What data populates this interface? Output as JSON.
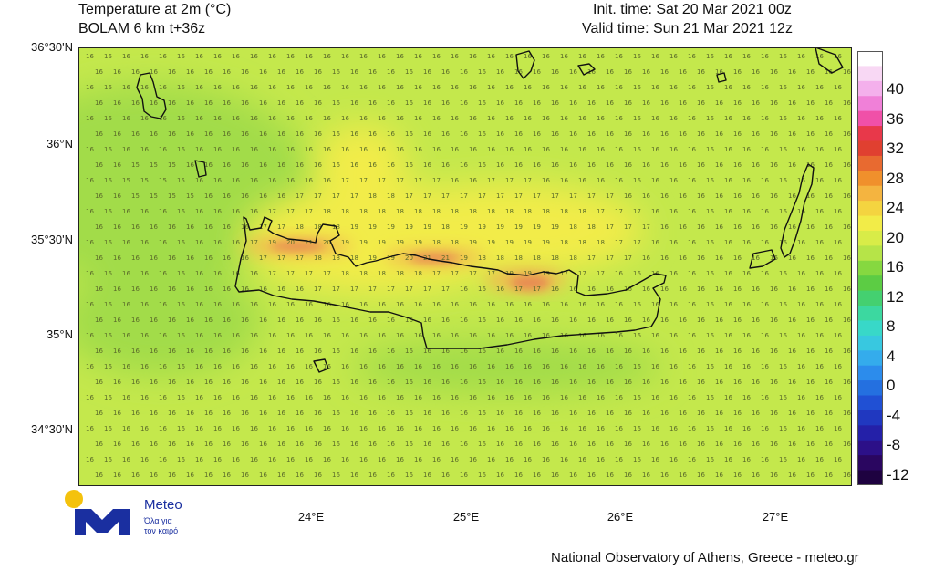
{
  "header": {
    "title_line1": "Temperature at 2m (°C)",
    "title_line2": "BOLAM 6 km t+36z",
    "init_time": "Init. time: Sat 20 Mar 2021 00z",
    "valid_time": "Valid time: Sun 21 Mar 2021 12z"
  },
  "axes": {
    "lat_labels": [
      "36°30'N",
      "36°N",
      "35°30'N",
      "35°N",
      "34°30'N"
    ],
    "lon_labels": [
      "24°E",
      "25°E",
      "26°E",
      "27°E"
    ]
  },
  "colorbar": {
    "labels": [
      "40",
      "36",
      "32",
      "28",
      "24",
      "20",
      "16",
      "12",
      "8",
      "4",
      "0",
      "-4",
      "-8",
      "-12"
    ],
    "colors": [
      "#ffffff",
      "#f8d8f4",
      "#f4b0ec",
      "#f080d8",
      "#f050a8",
      "#e8384a",
      "#e04030",
      "#e86a30",
      "#f0902c",
      "#f4b440",
      "#f4d440",
      "#f2ec48",
      "#d8ec48",
      "#b6e448",
      "#86d840",
      "#5ccc44",
      "#44d070",
      "#3cd8a0",
      "#38d8c8",
      "#38c8e0",
      "#34acec",
      "#2c8cec",
      "#2470e0",
      "#2050d4",
      "#2038c0",
      "#2420a8",
      "#2c1088",
      "#2a0660",
      "#1e0240"
    ]
  },
  "branding": {
    "logo_name": "Meteo",
    "slogan_line1": "Όλα για",
    "slogan_line2": "τον καιρό",
    "credit": "National Observatory of Athens, Greece - meteo.gr"
  },
  "colors": {
    "sea_base": "#c4e84c",
    "sea_cool": "#a2dc48",
    "land_warm": "#f2ec48",
    "land_hot": "#f0b850",
    "hotspot": "#e88a52",
    "coast": "#111111",
    "logo_blue": "#1a2fa0",
    "logo_yellow": "#f4c20d"
  }
}
